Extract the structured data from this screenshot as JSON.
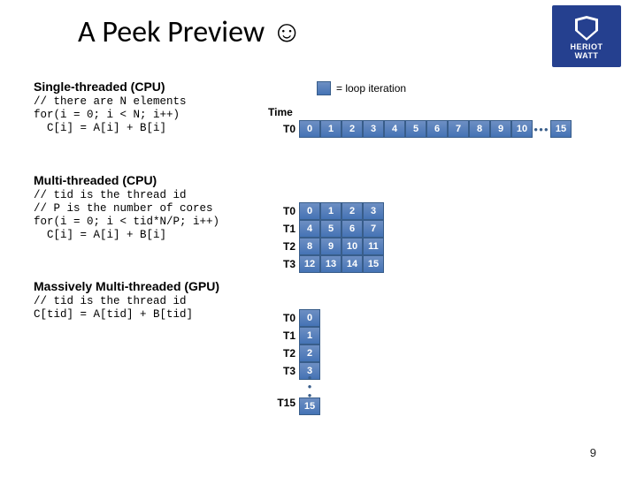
{
  "title": "A Peek Preview ☺",
  "logo": {
    "line1": "HERIOT",
    "line2": "WATT",
    "bg": "#25408f"
  },
  "legend_text": "= loop iteration",
  "time_label": "Time",
  "sections": {
    "s1": {
      "heading": "Single-threaded (CPU)",
      "code": "// there are N elements\nfor(i = 0; i < N; i++)\n  C[i] = A[i] + B[i]",
      "row_labels": [
        "T0"
      ],
      "cells": [
        "0",
        "1",
        "2",
        "3",
        "4",
        "5",
        "6",
        "7",
        "8",
        "9",
        "10",
        "⋯",
        "15"
      ]
    },
    "s2": {
      "heading": "Multi-threaded (CPU)",
      "code": "// tid is the thread id\n// P is the number of cores\nfor(i = 0; i < tid*N/P; i++)\n  C[i] = A[i] + B[i]",
      "row_labels": [
        "T0",
        "T1",
        "T2",
        "T3"
      ],
      "rows": [
        [
          "0",
          "1",
          "2",
          "3"
        ],
        [
          "4",
          "5",
          "6",
          "7"
        ],
        [
          "8",
          "9",
          "10",
          "11"
        ],
        [
          "12",
          "13",
          "14",
          "15"
        ]
      ]
    },
    "s3": {
      "heading": "Massively Multi-threaded (GPU)",
      "code": "// tid is the thread id\nC[tid] = A[tid] + B[tid]",
      "row_labels": [
        "T0",
        "T1",
        "T2",
        "T3",
        "⋮",
        "T15"
      ],
      "col": [
        "0",
        "1",
        "2",
        "3",
        "⋮",
        "15"
      ]
    }
  },
  "page_number": "9",
  "colors": {
    "cell_top": "#6d8fc3",
    "cell_bottom": "#4573b5",
    "cell_border": "#385d8a",
    "text_on_cell": "#ffffff"
  }
}
